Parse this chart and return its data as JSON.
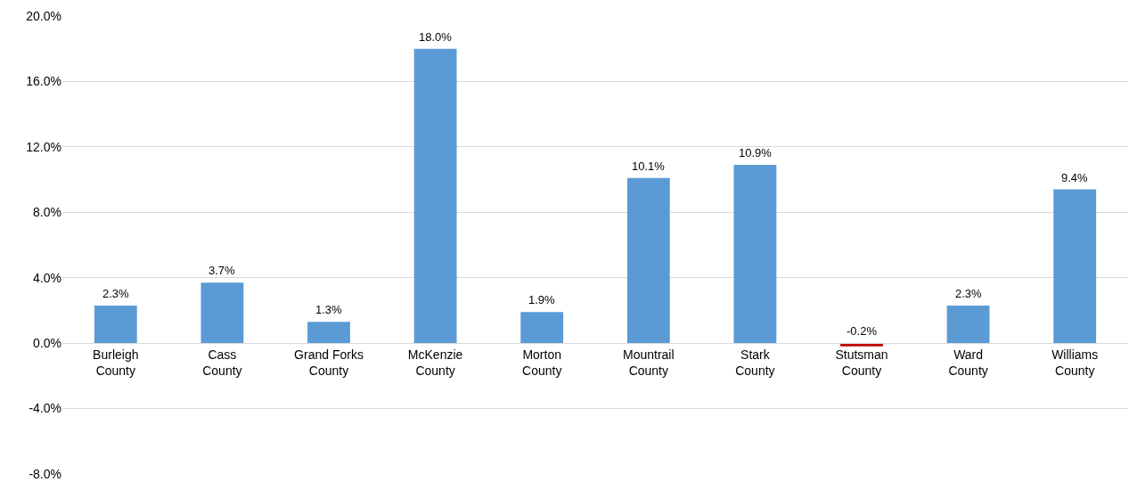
{
  "chart_data": {
    "type": "bar",
    "categories": [
      "Burleigh County",
      "Cass County",
      "Grand Forks County",
      "McKenzie County",
      "Morton County",
      "Mountrail County",
      "Stark County",
      "Stutsman County",
      "Ward County",
      "Williams County"
    ],
    "values": [
      2.3,
      3.7,
      1.3,
      18.0,
      1.9,
      10.1,
      10.9,
      -0.2,
      2.3,
      9.4
    ],
    "colors": [
      "#5b9bd5",
      "#5b9bd5",
      "#5b9bd5",
      "#5b9bd5",
      "#5b9bd5",
      "#5b9bd5",
      "#5b9bd5",
      "#c00000",
      "#5b9bd5",
      "#5b9bd5"
    ],
    "value_labels": [
      "2.3%",
      "3.7%",
      "1.3%",
      "18.0%",
      "1.9%",
      "10.1%",
      "10.9%",
      "-0.2%",
      "2.3%",
      "9.4%"
    ],
    "ylim": [
      -8,
      20
    ],
    "yticks": [
      {
        "value": -8,
        "label": "-8.0%"
      },
      {
        "value": -4,
        "label": "-4.0%"
      },
      {
        "value": 0,
        "label": "0.0%"
      },
      {
        "value": 4,
        "label": "4.0%"
      },
      {
        "value": 8,
        "label": "8.0%"
      },
      {
        "value": 12,
        "label": "12.0%"
      },
      {
        "value": 16,
        "label": "16.0%"
      },
      {
        "value": 20,
        "label": "20.0%"
      }
    ],
    "grid": "y"
  }
}
